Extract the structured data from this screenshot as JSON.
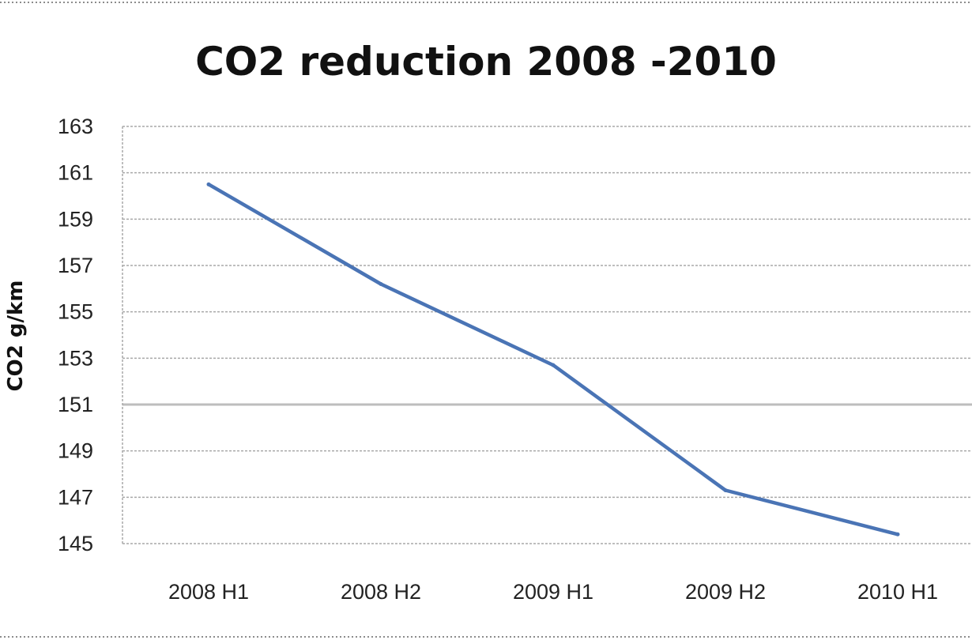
{
  "chart_data": {
    "type": "line",
    "title": "CO2 reduction 2008 -2010",
    "xlabel": "",
    "ylabel": "CO2 g/km",
    "categories": [
      "2008 H1",
      "2008 H2",
      "2009 H1",
      "2009 H2",
      "2010 H1"
    ],
    "series": [
      {
        "values": [
          160.5,
          156.2,
          152.7,
          147.3,
          145.4
        ]
      }
    ],
    "ylim": [
      145,
      163
    ],
    "yticks": [
      163,
      161,
      159,
      157,
      155,
      153,
      151,
      149,
      147,
      145
    ],
    "grid": true,
    "legend": "none",
    "line_color": "#4a74b5"
  }
}
